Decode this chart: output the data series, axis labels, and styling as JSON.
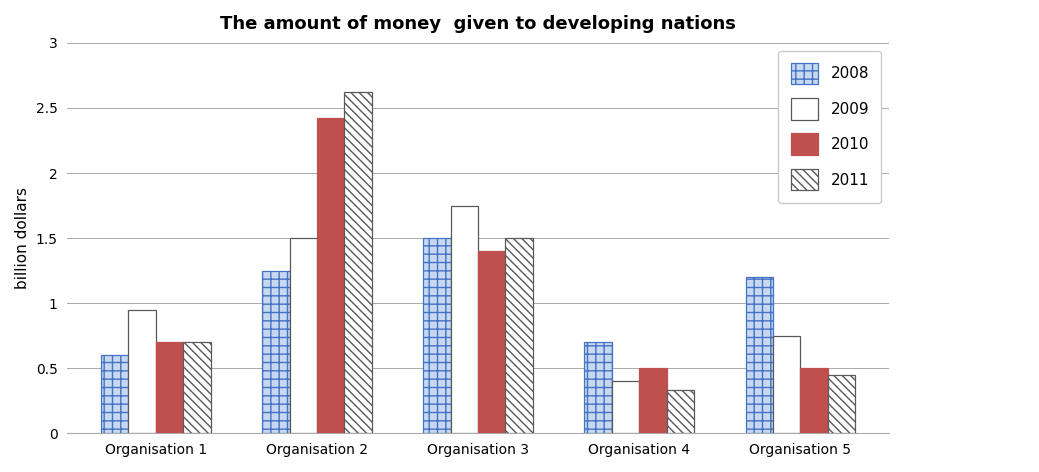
{
  "title": "The amount of money  given to developing nations",
  "ylabel": "billion dollars",
  "categories": [
    "Organisation 1",
    "Organisation 2",
    "Organisation 3",
    "Organisation 4",
    "Organisation 5"
  ],
  "years": [
    "2008",
    "2009",
    "2010",
    "2011"
  ],
  "values": {
    "2008": [
      0.6,
      1.25,
      1.5,
      0.7,
      1.2
    ],
    "2009": [
      0.95,
      1.5,
      1.75,
      0.4,
      0.75
    ],
    "2010": [
      0.7,
      2.42,
      1.4,
      0.5,
      0.5
    ],
    "2011": [
      0.7,
      2.62,
      1.5,
      0.33,
      0.45
    ]
  },
  "bar_face_colors": {
    "2008": "#c6d9f1",
    "2009": "#ffffff",
    "2010": "#c0504d",
    "2011": "#ffffff"
  },
  "bar_edge_colors": {
    "2008": "#4472c4",
    "2009": "#595959",
    "2010": "#c0504d",
    "2011": "#595959"
  },
  "bar_hatches": {
    "2008": "++",
    "2009": "",
    "2010": "",
    "2011": "\\\\\\\\"
  },
  "ylim": [
    0,
    3.0
  ],
  "yticks": [
    0,
    0.5,
    1.0,
    1.5,
    2.0,
    2.5,
    3.0
  ],
  "ytick_labels": [
    "0",
    "0.5",
    "1",
    "1.5",
    "2",
    "2.5",
    "3"
  ],
  "title_fontsize": 13,
  "axis_label_fontsize": 11,
  "tick_fontsize": 10,
  "legend_fontsize": 11,
  "bar_width": 0.17,
  "background_color": "#ffffff",
  "grid_color": "#aaaaaa",
  "legend_hatch_2011": "\\\\\\\\"
}
